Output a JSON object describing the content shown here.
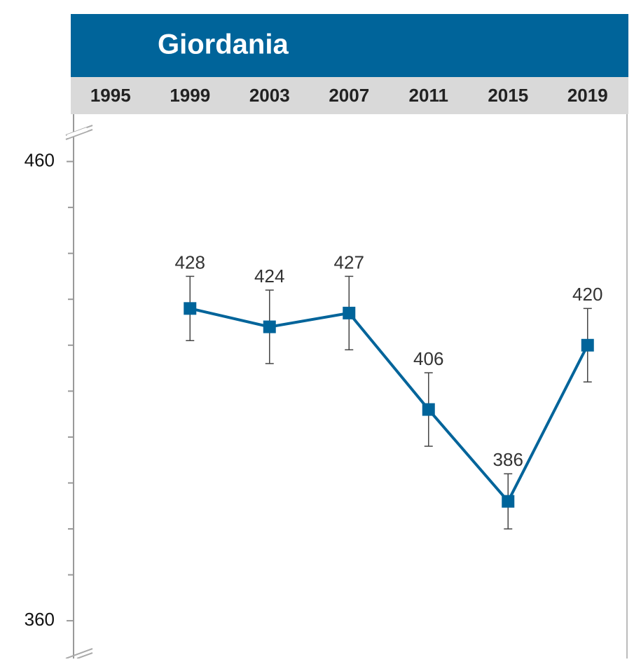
{
  "chart_data": {
    "type": "line",
    "title": "Giordania",
    "categories": [
      "1995",
      "1999",
      "2003",
      "2007",
      "2011",
      "2015",
      "2019"
    ],
    "series": [
      {
        "color": "#00649a",
        "values": [
          null,
          428,
          424,
          427,
          406,
          386,
          420
        ],
        "errors": [
          null,
          7,
          8,
          8,
          8,
          6,
          8
        ]
      }
    ],
    "ylim": [
      353,
      470
    ],
    "yticks": [
      360,
      460
    ],
    "minor_yticks": [
      370,
      380,
      390,
      400,
      410,
      420,
      430,
      440,
      450
    ],
    "header_color": "#00649a",
    "category_band_color": "#d9d9d9"
  }
}
